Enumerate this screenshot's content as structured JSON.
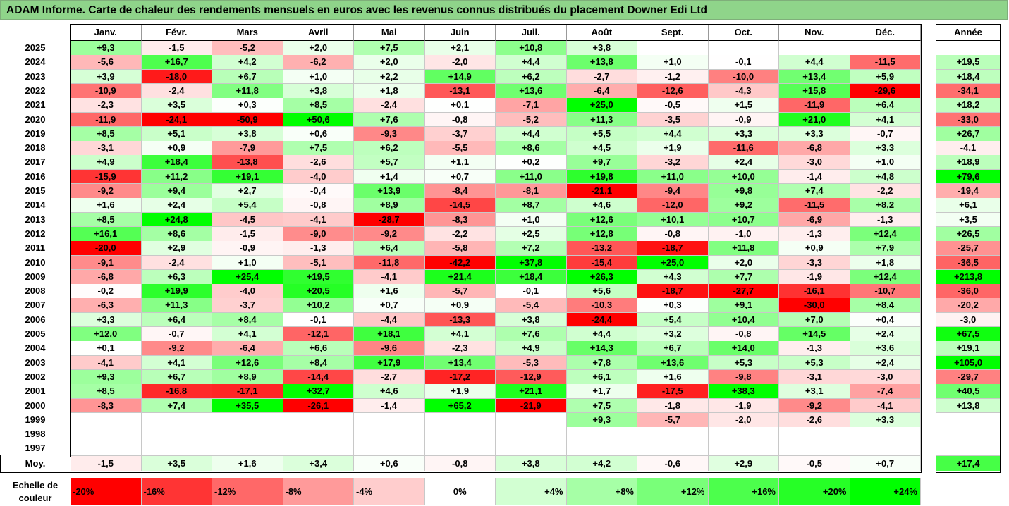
{
  "title": "ADAM Informe. Carte de chaleur des rendements mensuels en euros avec les revenus connus distribués du placement Downer Edi Ltd",
  "chart_data": {
    "type": "heatmap",
    "columns": [
      "Janv.",
      "Févr.",
      "Mars",
      "Avril",
      "Mai",
      "Juin",
      "Juil.",
      "Août",
      "Sept.",
      "Oct.",
      "Nov.",
      "Déc."
    ],
    "annual_header": "Année",
    "rows": [
      {
        "year": "2025",
        "values": [
          "+9,3",
          "-1,5",
          "-5,2",
          "+2,0",
          "+7,5",
          "+2,1",
          "+10,8",
          "+3,8",
          "",
          "",
          "",
          ""
        ],
        "annual": ""
      },
      {
        "year": "2024",
        "values": [
          "-5,6",
          "+16,7",
          "+4,2",
          "-6,2",
          "+2,0",
          "-2,0",
          "+4,4",
          "+13,8",
          "+1,0",
          "-0,1",
          "+4,4",
          "-11,5"
        ],
        "annual": "+19,5"
      },
      {
        "year": "2023",
        "values": [
          "+3,9",
          "-18,0",
          "+6,7",
          "+1,0",
          "+2,2",
          "+14,9",
          "+6,2",
          "-2,7",
          "-1,2",
          "-10,0",
          "+13,4",
          "+5,9"
        ],
        "annual": "+18,4"
      },
      {
        "year": "2022",
        "values": [
          "-10,9",
          "-2,4",
          "+11,8",
          "+3,8",
          "+1,8",
          "-13,1",
          "+13,6",
          "-6,4",
          "-12,6",
          "-4,3",
          "+15,8",
          "-29,6"
        ],
        "annual": "-34,1"
      },
      {
        "year": "2021",
        "values": [
          "-2,3",
          "+3,5",
          "+0,3",
          "+8,5",
          "-2,4",
          "+0,1",
          "-7,1",
          "+25,0",
          "-0,5",
          "+1,5",
          "-11,9",
          "+6,4"
        ],
        "annual": "+18,2"
      },
      {
        "year": "2020",
        "values": [
          "-11,9",
          "-24,1",
          "-50,9",
          "+50,6",
          "+7,6",
          "-0,8",
          "-5,2",
          "+11,3",
          "-3,5",
          "-0,9",
          "+21,0",
          "+4,1"
        ],
        "annual": "-33,0"
      },
      {
        "year": "2019",
        "values": [
          "+8,5",
          "+5,1",
          "+3,8",
          "+0,6",
          "-9,3",
          "-3,7",
          "+4,4",
          "+5,5",
          "+4,4",
          "+3,3",
          "+3,3",
          "-0,7"
        ],
        "annual": "+26,7"
      },
      {
        "year": "2018",
        "values": [
          "-3,1",
          "+0,9",
          "-7,9",
          "+7,5",
          "+6,2",
          "-5,5",
          "+8,6",
          "+4,5",
          "+1,9",
          "-11,6",
          "-6,8",
          "+3,3"
        ],
        "annual": "-4,1"
      },
      {
        "year": "2017",
        "values": [
          "+4,9",
          "+18,4",
          "-13,8",
          "-2,6",
          "+5,7",
          "+1,1",
          "+0,2",
          "+9,7",
          "-3,2",
          "+2,4",
          "-3,0",
          "+1,0"
        ],
        "annual": "+18,9"
      },
      {
        "year": "2016",
        "values": [
          "-15,9",
          "+11,2",
          "+19,1",
          "-4,0",
          "+1,4",
          "+0,7",
          "+11,0",
          "+19,8",
          "+11,0",
          "+10,0",
          "-1,4",
          "+4,8"
        ],
        "annual": "+79,6"
      },
      {
        "year": "2015",
        "values": [
          "-9,2",
          "+9,4",
          "+2,7",
          "-0,4",
          "+13,9",
          "-8,4",
          "-8,1",
          "-21,1",
          "-9,4",
          "+9,8",
          "+7,4",
          "-2,2"
        ],
        "annual": "-19,4"
      },
      {
        "year": "2014",
        "values": [
          "+1,6",
          "+2,4",
          "+5,4",
          "-0,8",
          "+8,9",
          "-14,5",
          "+8,7",
          "+4,6",
          "-12,0",
          "+9,2",
          "-11,5",
          "+8,2"
        ],
        "annual": "+6,1"
      },
      {
        "year": "2013",
        "values": [
          "+8,5",
          "+24,8",
          "-4,5",
          "-4,1",
          "-28,7",
          "-8,3",
          "+1,0",
          "+12,6",
          "+10,1",
          "+10,7",
          "-6,9",
          "-1,3"
        ],
        "annual": "+3,5"
      },
      {
        "year": "2012",
        "values": [
          "+16,1",
          "+8,6",
          "-1,5",
          "-9,0",
          "-9,2",
          "-2,2",
          "+2,5",
          "+12,8",
          "-0,8",
          "-1,0",
          "-1,3",
          "+12,4"
        ],
        "annual": "+26,5"
      },
      {
        "year": "2011",
        "values": [
          "-20,0",
          "+2,9",
          "-0,9",
          "-1,3",
          "+6,4",
          "-5,8",
          "+7,2",
          "-13,2",
          "-18,7",
          "+11,8",
          "+0,9",
          "+7,9"
        ],
        "annual": "-25,7"
      },
      {
        "year": "2010",
        "values": [
          "-9,1",
          "-2,4",
          "+1,0",
          "-5,1",
          "-11,8",
          "-42,2",
          "+37,8",
          "-15,4",
          "+25,0",
          "+2,0",
          "-3,3",
          "+1,8"
        ],
        "annual": "-36,5"
      },
      {
        "year": "2009",
        "values": [
          "-6,8",
          "+6,3",
          "+25,4",
          "+19,5",
          "-4,1",
          "+21,4",
          "+18,4",
          "+26,3",
          "+4,3",
          "+7,7",
          "-1,9",
          "+12,4"
        ],
        "annual": "+213,8"
      },
      {
        "year": "2008",
        "values": [
          "-0,2",
          "+19,9",
          "-4,0",
          "+20,5",
          "+1,6",
          "-5,7",
          "-0,1",
          "+5,6",
          "-18,7",
          "-27,7",
          "-16,1",
          "-10,7"
        ],
        "annual": "-36,0"
      },
      {
        "year": "2007",
        "values": [
          "-6,3",
          "+11,3",
          "-3,7",
          "+10,2",
          "+0,7",
          "+0,9",
          "-5,4",
          "-10,3",
          "+0,3",
          "+9,1",
          "-30,0",
          "+8,4"
        ],
        "annual": "-20,2"
      },
      {
        "year": "2006",
        "values": [
          "+3,3",
          "+6,4",
          "+8,4",
          "-0,1",
          "-4,4",
          "-13,3",
          "+3,8",
          "-24,4",
          "+5,4",
          "+10,4",
          "+7,0",
          "+0,4"
        ],
        "annual": "-3,0"
      },
      {
        "year": "2005",
        "values": [
          "+12,0",
          "-0,7",
          "+4,1",
          "-12,1",
          "+18,1",
          "+4,1",
          "+7,6",
          "+4,4",
          "+3,2",
          "-0,8",
          "+14,5",
          "+2,4"
        ],
        "annual": "+67,5"
      },
      {
        "year": "2004",
        "values": [
          "+0,1",
          "-9,2",
          "-6,4",
          "+6,6",
          "-9,6",
          "-2,3",
          "+4,9",
          "+14,3",
          "+6,7",
          "+14,0",
          "-1,3",
          "+3,6"
        ],
        "annual": "+19,1"
      },
      {
        "year": "2003",
        "values": [
          "-4,1",
          "+4,1",
          "+12,6",
          "+8,4",
          "+17,9",
          "+13,4",
          "-5,3",
          "+7,8",
          "+13,6",
          "+5,3",
          "+5,3",
          "+2,4"
        ],
        "annual": "+105,0"
      },
      {
        "year": "2002",
        "values": [
          "+9,3",
          "+6,7",
          "+8,9",
          "-14,4",
          "-2,7",
          "-17,2",
          "-12,9",
          "+6,1",
          "+1,6",
          "-9,8",
          "-3,1",
          "-3,0"
        ],
        "annual": "-29,7"
      },
      {
        "year": "2001",
        "values": [
          "+8,5",
          "-16,8",
          "-17,1",
          "+32,7",
          "+4,6",
          "+1,9",
          "+21,1",
          "+1,7",
          "-17,5",
          "+38,3",
          "+3,1",
          "-7,4"
        ],
        "annual": "+40,5"
      },
      {
        "year": "2000",
        "values": [
          "-8,3",
          "+7,4",
          "+35,5",
          "-26,1",
          "-1,4",
          "+65,2",
          "-21,9",
          "+7,5",
          "-1,8",
          "-1,9",
          "-9,2",
          "-4,1"
        ],
        "annual": "+13,8"
      },
      {
        "year": "1999",
        "values": [
          "",
          "",
          "",
          "",
          "",
          "",
          "",
          "+9,3",
          "-5,7",
          "-2,0",
          "-2,6",
          "+3,3"
        ],
        "annual": ""
      },
      {
        "year": "1998",
        "values": [
          "",
          "",
          "",
          "",
          "",
          "",
          "",
          "",
          "",
          "",
          "",
          ""
        ],
        "annual": ""
      },
      {
        "year": "1997",
        "values": [
          "",
          "",
          "",
          "",
          "",
          "",
          "",
          "",
          "",
          "",
          "",
          ""
        ],
        "annual": ""
      }
    ],
    "average": {
      "label": "Moy.",
      "values": [
        "-1,5",
        "+3,5",
        "+1,6",
        "+3,4",
        "+0,6",
        "-0,8",
        "+3,8",
        "+4,2",
        "-0,6",
        "+2,9",
        "-0,5",
        "+0,7"
      ],
      "annual": "+17,4"
    },
    "color_scale": {
      "label_line1": "Echelle de",
      "label_line2": "couleur",
      "stops": [
        "-20%",
        "-16%",
        "-12%",
        "-8%",
        "-4%",
        "0%",
        "+4%",
        "+8%",
        "+12%",
        "+16%",
        "+20%",
        "+24%"
      ],
      "negative_color": "#ff0000",
      "neutral_color": "#ffffff",
      "positive_color": "#00ff00"
    }
  }
}
